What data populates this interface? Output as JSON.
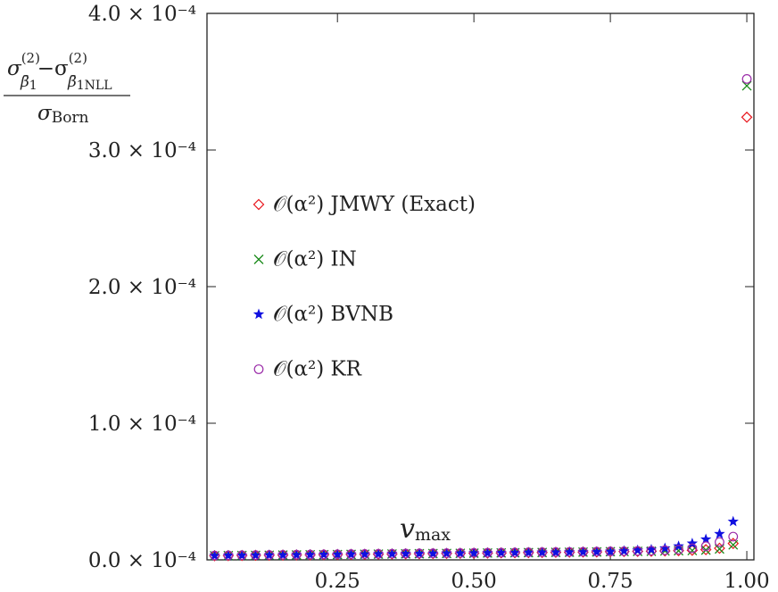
{
  "chart_data": {
    "type": "scatter",
    "y_label": {
      "numerator": [
        "σ",
        "(2)",
        "β̄",
        "1",
        "−σ",
        "(2)",
        "β̄",
        "1NLL"
      ],
      "denominator": [
        "σ",
        "Born"
      ]
    },
    "x_label": [
      "v",
      "max"
    ],
    "x": [
      0.025,
      0.05,
      0.075,
      0.1,
      0.125,
      0.15,
      0.175,
      0.2,
      0.225,
      0.25,
      0.275,
      0.3,
      0.325,
      0.35,
      0.375,
      0.4,
      0.425,
      0.45,
      0.475,
      0.5,
      0.525,
      0.55,
      0.575,
      0.6,
      0.625,
      0.65,
      0.675,
      0.7,
      0.725,
      0.75,
      0.775,
      0.8,
      0.825,
      0.85,
      0.875,
      0.9,
      0.925,
      0.95,
      0.975,
      1.0
    ],
    "series": [
      {
        "name": "𝒪(α²) JMWY (Exact)",
        "color": "#e8141b",
        "marker": "diamond",
        "values": [
          3e-06,
          3.1e-06,
          3.2e-06,
          3.3e-06,
          3.4e-06,
          3.5e-06,
          3.6e-06,
          3.7e-06,
          3.8e-06,
          3.9e-06,
          4e-06,
          4.1e-06,
          4.2e-06,
          4.3e-06,
          4.4e-06,
          4.5e-06,
          4.6e-06,
          4.7e-06,
          4.8e-06,
          4.9e-06,
          5e-06,
          5.1e-06,
          5.2e-06,
          5.3e-06,
          5.4e-06,
          5.5e-06,
          5.6e-06,
          5.7e-06,
          5.8e-06,
          6e-06,
          6.1e-06,
          6.2e-06,
          6.3e-06,
          6.5e-06,
          6.7e-06,
          7e-06,
          7.5e-06,
          8.5e-06,
          1.2e-05,
          0.000324
        ]
      },
      {
        "name": "𝒪(α²) IN",
        "color": "#1a8a1a",
        "marker": "cross",
        "values": [
          3e-06,
          3.1e-06,
          3.2e-06,
          3.3e-06,
          3.4e-06,
          3.5e-06,
          3.6e-06,
          3.7e-06,
          3.8e-06,
          3.9e-06,
          4e-06,
          4.1e-06,
          4.2e-06,
          4.3e-06,
          4.4e-06,
          4.5e-06,
          4.6e-06,
          4.7e-06,
          4.8e-06,
          4.9e-06,
          5e-06,
          5.1e-06,
          5.2e-06,
          5.3e-06,
          5.4e-06,
          5.5e-06,
          5.6e-06,
          5.7e-06,
          5.8e-06,
          6e-06,
          6.1e-06,
          6.2e-06,
          6.3e-06,
          6.5e-06,
          6.7e-06,
          6.8e-06,
          7.2e-06,
          8e-06,
          1.1e-05,
          0.000347
        ]
      },
      {
        "name": "𝒪(α²) BVNB",
        "color": "#1010e0",
        "marker": "star",
        "values": [
          3e-06,
          3.1e-06,
          3.2e-06,
          3.3e-06,
          3.4e-06,
          3.5e-06,
          3.6e-06,
          3.7e-06,
          3.8e-06,
          3.9e-06,
          4e-06,
          4.1e-06,
          4.2e-06,
          4.3e-06,
          4.4e-06,
          4.5e-06,
          4.6e-06,
          4.7e-06,
          4.8e-06,
          4.9e-06,
          5e-06,
          5.1e-06,
          5.2e-06,
          5.3e-06,
          5.4e-06,
          5.5e-06,
          5.6e-06,
          5.7e-06,
          5.8e-06,
          6e-06,
          6.5e-06,
          7e-06,
          7.5e-06,
          8.5e-06,
          1e-05,
          1.2e-05,
          1.5e-05,
          1.9e-05,
          2.8e-05,
          null
        ]
      },
      {
        "name": "𝒪(α²) KR",
        "color": "#9a2aa8",
        "marker": "circle",
        "values": [
          3.2e-06,
          3.3e-06,
          3.4e-06,
          3.5e-06,
          3.6e-06,
          3.7e-06,
          3.8e-06,
          3.9e-06,
          4e-06,
          4.1e-06,
          4.2e-06,
          4.3e-06,
          4.4e-06,
          4.5e-06,
          4.6e-06,
          4.7e-06,
          4.8e-06,
          4.9e-06,
          5e-06,
          5.1e-06,
          5.2e-06,
          5.3e-06,
          5.4e-06,
          5.5e-06,
          5.6e-06,
          5.7e-06,
          5.8e-06,
          5.9e-06,
          6e-06,
          6.2e-06,
          6.3e-06,
          6.5e-06,
          6.7e-06,
          7e-06,
          7.5e-06,
          8.5e-06,
          1e-05,
          1.3e-05,
          1.7e-05,
          0.000352
        ]
      }
    ],
    "xlim": [
      0.011,
      1.013
    ],
    "xticks": [
      0.25,
      {
        "value": 0.5,
        "label": "0.50"
      },
      0.75,
      {
        "value": 1.0,
        "label": "1.00"
      }
    ],
    "ylim": [
      0,
      0.0004
    ],
    "yticks": [
      {
        "value": 0,
        "label": "0.0 × 10⁻⁴"
      },
      {
        "value": 0.0001,
        "label": "1.0 × 10⁻⁴"
      },
      {
        "value": 0.0002,
        "label": "2.0 × 10⁻⁴"
      },
      {
        "value": 0.0003,
        "label": "3.0 × 10⁻⁴"
      },
      {
        "value": 0.0004,
        "label": "4.0 × 10⁻⁴"
      }
    ],
    "legend": "center-left"
  }
}
